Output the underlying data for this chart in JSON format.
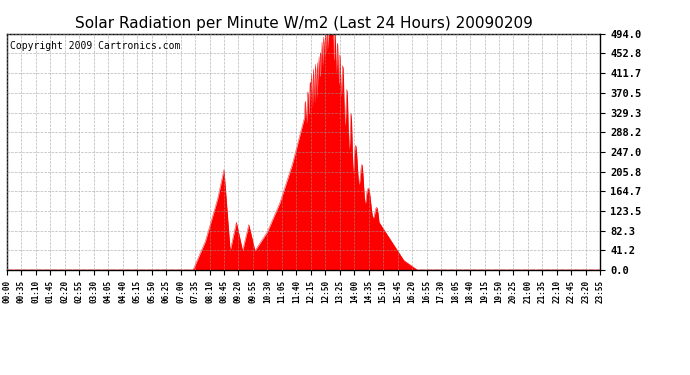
{
  "title": "Solar Radiation per Minute W/m2 (Last 24 Hours) 20090209",
  "copyright_text": "Copyright 2009 Cartronics.com",
  "yticks": [
    0.0,
    41.2,
    82.3,
    123.5,
    164.7,
    205.8,
    247.0,
    288.2,
    329.3,
    370.5,
    411.7,
    452.8,
    494.0
  ],
  "ymax": 494.0,
  "ymin": 0.0,
  "fill_color": "#FF0000",
  "line_color": "#FF0000",
  "background_color": "#FFFFFF",
  "grid_color": "#999999",
  "dashed_line_color": "#FF0000",
  "title_fontsize": 11,
  "copyright_fontsize": 7,
  "tick_interval_minutes": 35
}
